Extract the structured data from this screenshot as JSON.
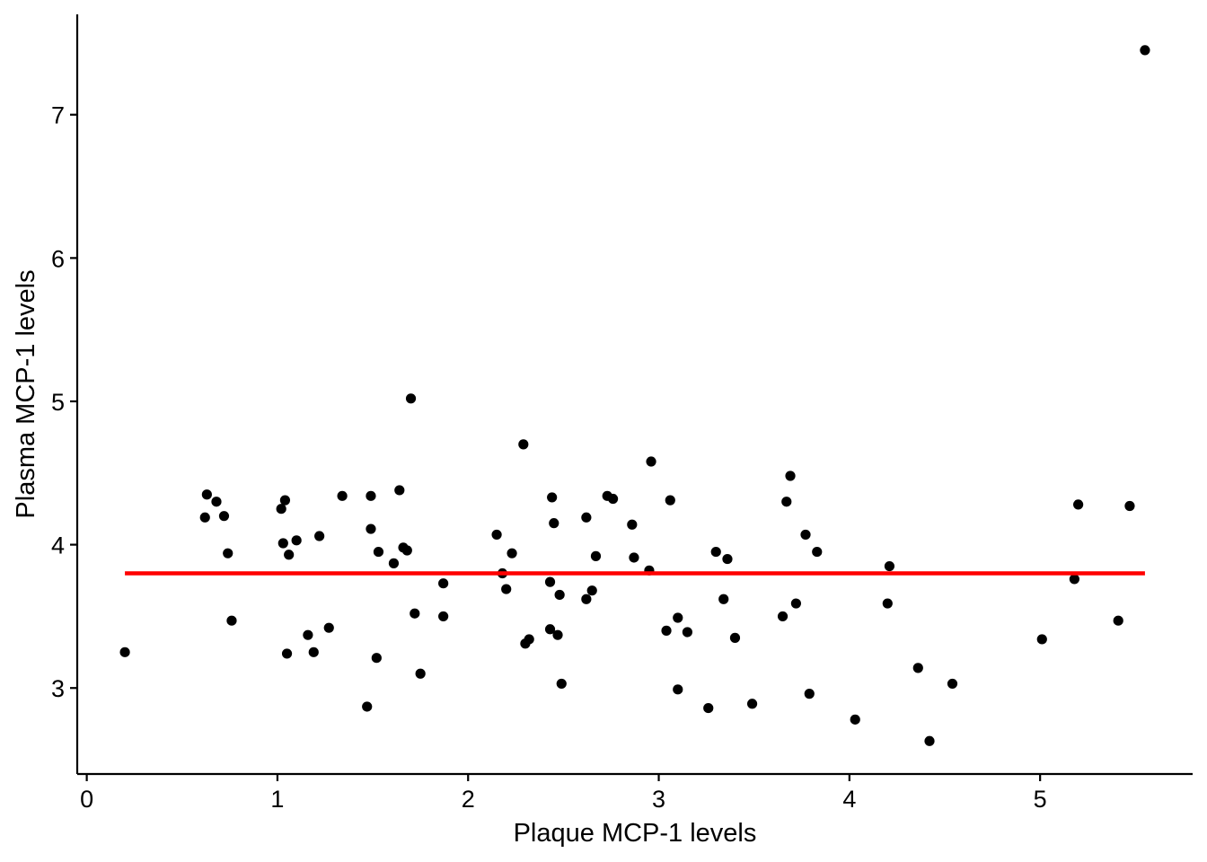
{
  "chart_data": {
    "type": "scatter",
    "xlabel": "Plaque MCP-1 levels",
    "ylabel": "Plasma MCP-1 levels",
    "xlim": [
      -0.05,
      5.8
    ],
    "ylim": [
      2.4,
      7.7
    ],
    "x_ticks": [
      0,
      1,
      2,
      3,
      4,
      5
    ],
    "y_ticks": [
      3,
      4,
      5,
      6,
      7
    ],
    "x_tick_labels": [
      "0",
      "1",
      "2",
      "3",
      "4",
      "5"
    ],
    "y_tick_labels": [
      "3",
      "4",
      "5",
      "6",
      "7"
    ],
    "grid": false,
    "legend": "none",
    "point_color": "#000000",
    "fit_line": {
      "x": [
        0.2,
        5.55
      ],
      "y": [
        3.8,
        3.8
      ],
      "color": "#ff0000"
    },
    "points": [
      {
        "x": 0.2,
        "y": 3.25
      },
      {
        "x": 0.62,
        "y": 4.19
      },
      {
        "x": 0.63,
        "y": 4.35
      },
      {
        "x": 0.68,
        "y": 4.3
      },
      {
        "x": 0.72,
        "y": 4.2
      },
      {
        "x": 0.74,
        "y": 3.94
      },
      {
        "x": 0.76,
        "y": 3.47
      },
      {
        "x": 1.02,
        "y": 4.25
      },
      {
        "x": 1.03,
        "y": 4.01
      },
      {
        "x": 1.04,
        "y": 4.31
      },
      {
        "x": 1.05,
        "y": 3.24
      },
      {
        "x": 1.06,
        "y": 3.93
      },
      {
        "x": 1.1,
        "y": 4.03
      },
      {
        "x": 1.16,
        "y": 3.37
      },
      {
        "x": 1.19,
        "y": 3.25
      },
      {
        "x": 1.22,
        "y": 4.06
      },
      {
        "x": 1.27,
        "y": 3.42
      },
      {
        "x": 1.34,
        "y": 4.34
      },
      {
        "x": 1.47,
        "y": 2.87
      },
      {
        "x": 1.49,
        "y": 4.11
      },
      {
        "x": 1.49,
        "y": 4.34
      },
      {
        "x": 1.52,
        "y": 3.21
      },
      {
        "x": 1.53,
        "y": 3.95
      },
      {
        "x": 1.61,
        "y": 3.87
      },
      {
        "x": 1.64,
        "y": 4.38
      },
      {
        "x": 1.66,
        "y": 3.98
      },
      {
        "x": 1.68,
        "y": 3.96
      },
      {
        "x": 1.7,
        "y": 5.02
      },
      {
        "x": 1.72,
        "y": 3.52
      },
      {
        "x": 1.75,
        "y": 3.1
      },
      {
        "x": 1.87,
        "y": 3.73
      },
      {
        "x": 1.87,
        "y": 3.5
      },
      {
        "x": 2.15,
        "y": 4.07
      },
      {
        "x": 2.18,
        "y": 3.8
      },
      {
        "x": 2.2,
        "y": 3.69
      },
      {
        "x": 2.23,
        "y": 3.94
      },
      {
        "x": 2.29,
        "y": 4.7
      },
      {
        "x": 2.3,
        "y": 3.31
      },
      {
        "x": 2.32,
        "y": 3.34
      },
      {
        "x": 2.43,
        "y": 3.74
      },
      {
        "x": 2.43,
        "y": 3.41
      },
      {
        "x": 2.44,
        "y": 4.33
      },
      {
        "x": 2.45,
        "y": 4.15
      },
      {
        "x": 2.47,
        "y": 3.37
      },
      {
        "x": 2.48,
        "y": 3.65
      },
      {
        "x": 2.49,
        "y": 3.03
      },
      {
        "x": 2.62,
        "y": 3.62
      },
      {
        "x": 2.62,
        "y": 4.19
      },
      {
        "x": 2.65,
        "y": 3.68
      },
      {
        "x": 2.67,
        "y": 3.92
      },
      {
        "x": 2.73,
        "y": 4.34
      },
      {
        "x": 2.76,
        "y": 4.32
      },
      {
        "x": 2.86,
        "y": 4.14
      },
      {
        "x": 2.87,
        "y": 3.91
      },
      {
        "x": 2.95,
        "y": 3.82
      },
      {
        "x": 2.96,
        "y": 4.58
      },
      {
        "x": 3.04,
        "y": 3.4
      },
      {
        "x": 3.06,
        "y": 4.31
      },
      {
        "x": 3.1,
        "y": 3.49
      },
      {
        "x": 3.1,
        "y": 2.99
      },
      {
        "x": 3.15,
        "y": 3.39
      },
      {
        "x": 3.26,
        "y": 2.86
      },
      {
        "x": 3.3,
        "y": 3.95
      },
      {
        "x": 3.34,
        "y": 3.62
      },
      {
        "x": 3.36,
        "y": 3.9
      },
      {
        "x": 3.4,
        "y": 3.35
      },
      {
        "x": 3.49,
        "y": 2.89
      },
      {
        "x": 3.65,
        "y": 3.5
      },
      {
        "x": 3.67,
        "y": 4.3
      },
      {
        "x": 3.69,
        "y": 4.48
      },
      {
        "x": 3.72,
        "y": 3.59
      },
      {
        "x": 3.77,
        "y": 4.07
      },
      {
        "x": 3.79,
        "y": 2.96
      },
      {
        "x": 3.83,
        "y": 3.95
      },
      {
        "x": 4.03,
        "y": 2.78
      },
      {
        "x": 4.2,
        "y": 3.59
      },
      {
        "x": 4.21,
        "y": 3.85
      },
      {
        "x": 4.36,
        "y": 3.14
      },
      {
        "x": 4.42,
        "y": 2.63
      },
      {
        "x": 4.54,
        "y": 3.03
      },
      {
        "x": 5.01,
        "y": 3.34
      },
      {
        "x": 5.18,
        "y": 3.76
      },
      {
        "x": 5.2,
        "y": 4.28
      },
      {
        "x": 5.41,
        "y": 3.47
      },
      {
        "x": 5.47,
        "y": 4.27
      },
      {
        "x": 5.55,
        "y": 7.45
      }
    ]
  }
}
